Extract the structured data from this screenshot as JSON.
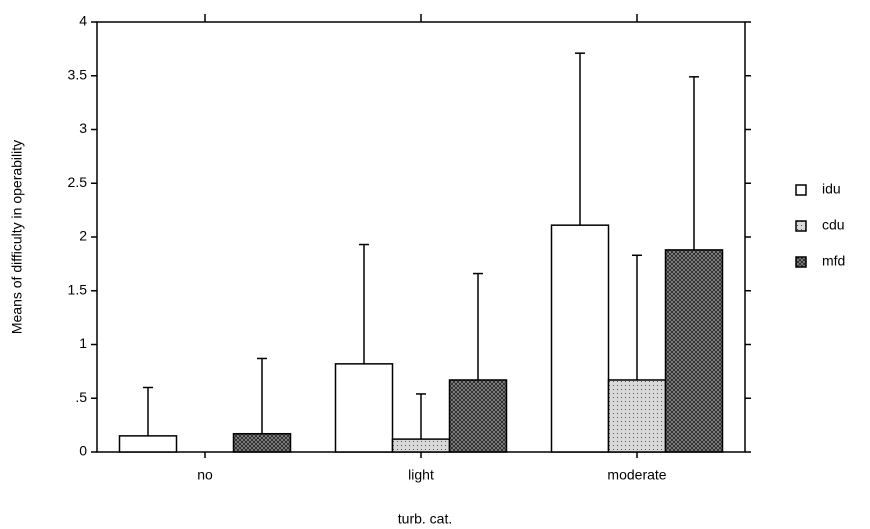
{
  "chart_data": {
    "type": "bar",
    "x_label": "turb. cat.",
    "y_label": "Means of difficulty in operability",
    "categories": [
      "no",
      "light",
      "moderate"
    ],
    "series": [
      {
        "name": "idu",
        "color": "#ffffff",
        "values": [
          0.15,
          0.82,
          2.11
        ],
        "errors": [
          0.45,
          1.11,
          1.6
        ]
      },
      {
        "name": "cdu",
        "color": "#d9d9d9",
        "values": [
          0,
          0.12,
          0.67
        ],
        "errors": [
          0,
          0.42,
          1.16
        ]
      },
      {
        "name": "mfd",
        "color": "#8c8c8c",
        "values": [
          0.17,
          0.67,
          1.88
        ],
        "errors": [
          0.7,
          0.99,
          1.61
        ]
      }
    ],
    "ylim": [
      0,
      4
    ],
    "yticks": [
      0,
      {
        "value": 0.5,
        "label": ".5"
      },
      1,
      1.5,
      2,
      2.5,
      3,
      3.5,
      4
    ],
    "legend": "right"
  }
}
